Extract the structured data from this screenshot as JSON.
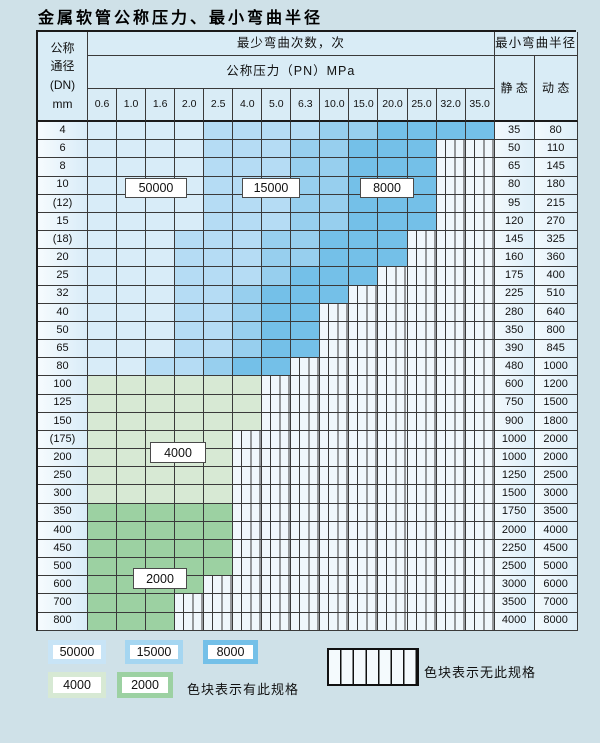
{
  "title": "金属软管公称压力、最小弯曲半径",
  "table": {
    "dn_header": "公称\n通径\n(DN)\nmm",
    "bend_cycles_header": "最少弯曲次数，次",
    "pressure_header": "公称压力（PN）MPa",
    "radius_header": "最小弯曲半径",
    "static_header": "静 态",
    "dynamic_header": "动 态",
    "pressures": [
      "0.6",
      "1.0",
      "1.6",
      "2.0",
      "2.5",
      "4.0",
      "5.0",
      "6.3",
      "10.0",
      "15.0",
      "20.0",
      "25.0",
      "32.0",
      "35.0"
    ],
    "rows": [
      {
        "dn": "4",
        "last": 13,
        "zone": "blue",
        "static": "35",
        "dynamic": "80"
      },
      {
        "dn": "6",
        "last": 11,
        "zone": "blue",
        "static": "50",
        "dynamic": "110"
      },
      {
        "dn": "8",
        "last": 11,
        "zone": "blue",
        "static": "65",
        "dynamic": "145"
      },
      {
        "dn": "10",
        "last": 11,
        "zone": "blue",
        "static": "80",
        "dynamic": "180"
      },
      {
        "dn": "(12)",
        "last": 11,
        "zone": "blue",
        "static": "95",
        "dynamic": "215"
      },
      {
        "dn": "15",
        "last": 11,
        "zone": "blue",
        "static": "120",
        "dynamic": "270"
      },
      {
        "dn": "(18)",
        "last": 10,
        "zone": "blue",
        "static": "145",
        "dynamic": "325"
      },
      {
        "dn": "20",
        "last": 10,
        "zone": "blue",
        "static": "160",
        "dynamic": "360"
      },
      {
        "dn": "25",
        "last": 9,
        "zone": "blue",
        "static": "175",
        "dynamic": "400"
      },
      {
        "dn": "32",
        "last": 8,
        "zone": "blue",
        "static": "225",
        "dynamic": "510"
      },
      {
        "dn": "40",
        "last": 7,
        "zone": "blue",
        "static": "280",
        "dynamic": "640"
      },
      {
        "dn": "50",
        "last": 7,
        "zone": "blue",
        "static": "350",
        "dynamic": "800"
      },
      {
        "dn": "65",
        "last": 7,
        "zone": "blue",
        "static": "390",
        "dynamic": "845"
      },
      {
        "dn": "80",
        "last": 6,
        "zone": "blue",
        "static": "480",
        "dynamic": "1000"
      },
      {
        "dn": "100",
        "last": 5,
        "zone": "green",
        "static": "600",
        "dynamic": "1200"
      },
      {
        "dn": "125",
        "last": 5,
        "zone": "green",
        "static": "750",
        "dynamic": "1500"
      },
      {
        "dn": "150",
        "last": 5,
        "zone": "green",
        "static": "900",
        "dynamic": "1800"
      },
      {
        "dn": "(175)",
        "last": 4,
        "zone": "green",
        "static": "1000",
        "dynamic": "2000"
      },
      {
        "dn": "200",
        "last": 4,
        "zone": "green",
        "static": "1000",
        "dynamic": "2000"
      },
      {
        "dn": "250",
        "last": 4,
        "zone": "green",
        "static": "1250",
        "dynamic": "2500"
      },
      {
        "dn": "300",
        "last": 4,
        "zone": "green",
        "static": "1500",
        "dynamic": "3000"
      },
      {
        "dn": "350",
        "last": 4,
        "zone": "green",
        "static": "1750",
        "dynamic": "3500"
      },
      {
        "dn": "400",
        "last": 4,
        "zone": "green",
        "static": "2000",
        "dynamic": "4000"
      },
      {
        "dn": "450",
        "last": 4,
        "zone": "green",
        "static": "2250",
        "dynamic": "4500"
      },
      {
        "dn": "500",
        "last": 4,
        "zone": "green",
        "static": "2500",
        "dynamic": "5000"
      },
      {
        "dn": "600",
        "last": 3,
        "zone": "green",
        "static": "3000",
        "dynamic": "6000"
      },
      {
        "dn": "700",
        "last": 2,
        "zone": "green",
        "static": "3500",
        "dynamic": "7000"
      },
      {
        "dn": "800",
        "last": 2,
        "zone": "green",
        "static": "4000",
        "dynamic": "8000"
      }
    ]
  },
  "zone_labels": [
    {
      "text": "50000"
    },
    {
      "text": "15000"
    },
    {
      "text": "8000"
    },
    {
      "text": "4000"
    },
    {
      "text": "2000"
    }
  ],
  "colors": {
    "blue_shades": [
      "#d8ecf8",
      "#b5dcf4",
      "#97cfee",
      "#74c0e8"
    ],
    "green_light": "#d7e9d4",
    "green_dark": "#9cd1a2",
    "hatch_line": "#3a3a3a",
    "grid_line": "#3a3a3a",
    "page_bg": "#cfe1e8",
    "header_bg": "#d9ecf6"
  },
  "legend": {
    "items": [
      {
        "label": "50000",
        "color": "#c8e4f6"
      },
      {
        "label": "15000",
        "color": "#a5d6f1"
      },
      {
        "label": "8000",
        "color": "#74c0e8"
      },
      {
        "label": "4000",
        "color": "#d7e9d4"
      },
      {
        "label": "2000",
        "color": "#9cd1a2"
      }
    ],
    "has_spec_text": "色块表示有此规格",
    "no_spec_text": "色块表示无此规格"
  }
}
